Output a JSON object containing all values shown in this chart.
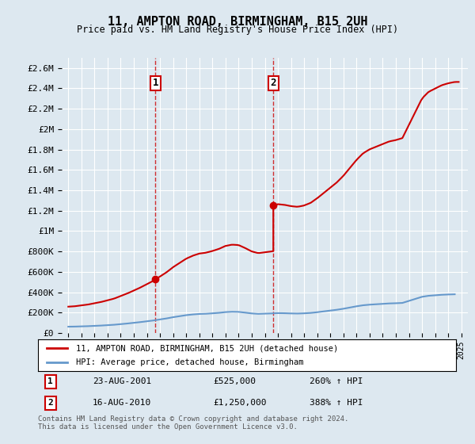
{
  "title": "11, AMPTON ROAD, BIRMINGHAM, B15 2UH",
  "subtitle": "Price paid vs. HM Land Registry's House Price Index (HPI)",
  "legend_label_red": "11, AMPTON ROAD, BIRMINGHAM, B15 2UH (detached house)",
  "legend_label_blue": "HPI: Average price, detached house, Birmingham",
  "transaction1_date": "23-AUG-2001",
  "transaction1_price": "£525,000",
  "transaction1_hpi": "260% ↑ HPI",
  "transaction1_year": 2001.65,
  "transaction1_value": 525000,
  "transaction2_date": "16-AUG-2010",
  "transaction2_price": "£1,250,000",
  "transaction2_hpi": "388% ↑ HPI",
  "transaction2_year": 2010.65,
  "transaction2_value": 1250000,
  "footer": "Contains HM Land Registry data © Crown copyright and database right 2024.\nThis data is licensed under the Open Government Licence v3.0.",
  "ylim": [
    0,
    2700000
  ],
  "xlim": [
    1994.5,
    2025.5
  ],
  "yticks": [
    0,
    200000,
    400000,
    600000,
    800000,
    1000000,
    1200000,
    1400000,
    1600000,
    1800000,
    2000000,
    2200000,
    2400000,
    2600000
  ],
  "ytick_labels": [
    "£0",
    "£200K",
    "£400K",
    "£600K",
    "£800K",
    "£1M",
    "£1.2M",
    "£1.4M",
    "£1.6M",
    "£1.8M",
    "£2M",
    "£2.2M",
    "£2.4M",
    "£2.6M"
  ],
  "xticks": [
    1995,
    1996,
    1997,
    1998,
    1999,
    2000,
    2001,
    2002,
    2003,
    2004,
    2005,
    2006,
    2007,
    2008,
    2009,
    2010,
    2011,
    2012,
    2013,
    2014,
    2015,
    2016,
    2017,
    2018,
    2019,
    2020,
    2021,
    2022,
    2023,
    2024,
    2025
  ],
  "red_color": "#cc0000",
  "blue_color": "#6699cc",
  "bg_color": "#dde8f0",
  "plot_bg": "#ffffff",
  "grid_color": "#ffffff",
  "vline_color": "#cc0000",
  "marker_box_color": "#cc0000"
}
